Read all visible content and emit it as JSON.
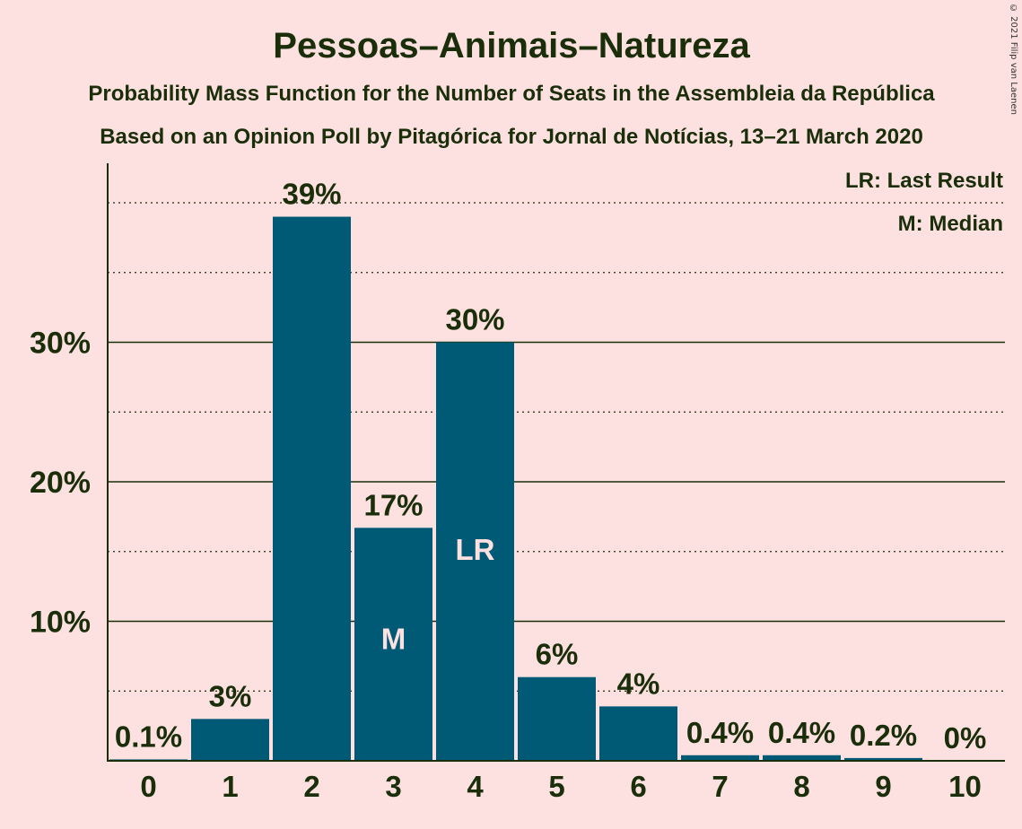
{
  "chart_data": {
    "type": "bar",
    "title": "Pessoas–Animais–Natureza",
    "subtitle1": "Probability Mass Function for the Number of Seats in the Assembleia da República",
    "subtitle2": "Based on an Opinion Poll by Pitagórica for Jornal de Notícias, 13–21 March 2020",
    "categories": [
      "0",
      "1",
      "2",
      "3",
      "4",
      "5",
      "6",
      "7",
      "8",
      "9",
      "10"
    ],
    "values": [
      0.1,
      3,
      39,
      16.7,
      30,
      6,
      3.9,
      0.4,
      0.4,
      0.2,
      0
    ],
    "value_labels": [
      "0.1%",
      "3%",
      "39%",
      "17%",
      "30%",
      "6%",
      "4%",
      "0.4%",
      "0.4%",
      "0.2%",
      "0%"
    ],
    "yticks": [
      10,
      20,
      30
    ],
    "ytick_labels": [
      "10%",
      "20%",
      "30%"
    ],
    "ylim": [
      0,
      42.8
    ],
    "grid": "solid at labelled ticks, dotted at halfway ticks",
    "markers": [
      {
        "category": "3",
        "label": "M"
      },
      {
        "category": "4",
        "label": "LR"
      }
    ],
    "legend": [
      "LR: Last Result",
      "M: Median"
    ],
    "legend_position": "top-right",
    "colors": {
      "background": "#fde0e0",
      "bar": "#005a75",
      "text": "#1a2e0a",
      "marker_text": "#fde0e0"
    }
  },
  "copyright": "© 2021 Filip van Laenen"
}
